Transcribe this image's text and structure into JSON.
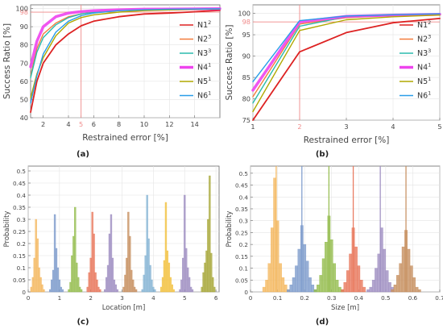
{
  "colors": {
    "N1": "#dd2222",
    "N2": "#f47c3c",
    "N3": "#2bbbad",
    "N4": "#ee44ee",
    "N5": "#b0a800",
    "N6": "#2a9ee8",
    "refline": "#f08a8a",
    "h_orange": "#f4b860",
    "h_blue": "#7e9ccc",
    "h_green": "#95bd4f",
    "h_red": "#e8785c",
    "h_purple": "#9f8fc2",
    "h_sky": "#86b4d4",
    "h_yellow": "#f2c242",
    "h_olive": "#a8a83a",
    "h_brown": "#c79060"
  },
  "chart_data": [
    {
      "id": "a",
      "type": "line",
      "panel_label": "(a)",
      "xlabel": "Restrained error [%]",
      "ylabel": "Success Ratio [%]",
      "xlim": [
        1,
        16
      ],
      "ylim": [
        40,
        102
      ],
      "xticks": [
        2,
        4,
        5,
        6,
        8,
        10,
        12,
        14
      ],
      "xtick_labels": [
        "2",
        "4",
        "5",
        "6",
        "8",
        "10",
        "12",
        "14"
      ],
      "highlight_xtick": 5,
      "yticks": [
        40,
        50,
        60,
        70,
        80,
        90,
        98,
        100
      ],
      "ytick_labels": [
        "40",
        "50",
        "60",
        "70",
        "80",
        "90",
        "98",
        "100"
      ],
      "highlight_ytick": 98,
      "ref_x": 5,
      "ref_y": 98,
      "legend_placement": "right",
      "x": [
        1,
        1.5,
        2,
        3,
        4,
        5,
        6,
        8,
        10,
        12,
        14,
        16
      ],
      "series": [
        {
          "name": "N1",
          "sup": "2",
          "color_key": "N1",
          "lw": 1.8,
          "values": [
            43,
            60,
            70,
            80,
            86,
            90.5,
            93,
            95.5,
            97,
            97.5,
            98.2,
            99
          ]
        },
        {
          "name": "N2",
          "sup": "3",
          "color_key": "N2",
          "lw": 1.4,
          "values": [
            63,
            78,
            86,
            92,
            95.5,
            97,
            98,
            99,
            99.4,
            99.6,
            99.7,
            99.8
          ]
        },
        {
          "name": "N3",
          "sup": "3",
          "color_key": "N3",
          "lw": 1.4,
          "values": [
            62,
            76,
            84,
            91,
            95,
            97,
            98,
            99,
            99.4,
            99.6,
            99.7,
            99.8
          ]
        },
        {
          "name": "N4",
          "sup": "1",
          "color_key": "N4",
          "lw": 3.5,
          "values": [
            68,
            82,
            90,
            95.5,
            97.5,
            98.3,
            98.8,
            99.3,
            99.6,
            99.7,
            99.8,
            99.9
          ]
        },
        {
          "name": "N5",
          "sup": "1",
          "color_key": "N5",
          "lw": 1.4,
          "values": [
            51,
            64,
            73,
            85,
            92,
            95,
            96.5,
            98,
            98.8,
            99.2,
            99.5,
            99.7
          ]
        },
        {
          "name": "N6",
          "sup": "1",
          "color_key": "N6",
          "lw": 1.4,
          "values": [
            48,
            63,
            75,
            87,
            93,
            96,
            97.5,
            98.8,
            99.3,
            99.6,
            99.7,
            99.8
          ]
        }
      ]
    },
    {
      "id": "b",
      "type": "line",
      "panel_label": "(b)",
      "xlabel": "Restrained error [%]",
      "ylabel": "Success Ratio [%]",
      "xlim": [
        1,
        5
      ],
      "ylim": [
        75,
        102
      ],
      "xticks": [
        1,
        2,
        3,
        4,
        5
      ],
      "xtick_labels": [
        "1",
        "2",
        "3",
        "4",
        "5"
      ],
      "highlight_xtick": 2,
      "yticks": [
        75,
        80,
        85,
        90,
        95,
        98,
        100
      ],
      "ytick_labels": [
        "75",
        "80",
        "85",
        "90",
        "95",
        "98",
        "100"
      ],
      "highlight_ytick": 98,
      "ref_x": 2,
      "ref_y": 98,
      "legend_placement": "right",
      "x": [
        1,
        2,
        3,
        4,
        5
      ],
      "series": [
        {
          "name": "N1",
          "sup": "2",
          "color_key": "N1",
          "lw": 1.8,
          "values": [
            75,
            91,
            95.5,
            97.8,
            98.8
          ]
        },
        {
          "name": "N2",
          "sup": "3",
          "color_key": "N2",
          "lw": 1.4,
          "values": [
            80.5,
            97.5,
            99,
            99.5,
            99.8
          ]
        },
        {
          "name": "N3",
          "sup": "3",
          "color_key": "N3",
          "lw": 1.4,
          "values": [
            79,
            97,
            99.2,
            99.6,
            99.8
          ]
        },
        {
          "name": "N4",
          "sup": "1",
          "color_key": "N4",
          "lw": 3.5,
          "values": [
            82,
            98,
            99.3,
            99.6,
            99.8
          ]
        },
        {
          "name": "N5",
          "sup": "1",
          "color_key": "N5",
          "lw": 1.4,
          "values": [
            77,
            96,
            98.5,
            99.2,
            99.6
          ]
        },
        {
          "name": "N6",
          "sup": "1",
          "color_key": "N6",
          "lw": 1.4,
          "values": [
            84,
            98.3,
            99.4,
            99.7,
            99.9
          ]
        }
      ]
    },
    {
      "id": "c",
      "type": "bar",
      "panel_label": "(c)",
      "xlabel": "Location [m]",
      "ylabel": "Probability",
      "xlim": [
        0,
        6.1
      ],
      "ylim": [
        0,
        0.52
      ],
      "xticks": [
        0,
        1,
        2,
        3,
        4,
        5,
        6
      ],
      "xtick_labels": [
        "0",
        "1",
        "2",
        "3",
        "4",
        "5",
        "6"
      ],
      "yticks": [
        0,
        0.05,
        0.1,
        0.15,
        0.2,
        0.25,
        0.3,
        0.35,
        0.4,
        0.45,
        0.5
      ],
      "ytick_labels": [
        "0",
        "0.05",
        "0.1",
        "0.15",
        "0.2",
        "0.25",
        "0.3",
        "0.35",
        "0.4",
        "0.45",
        "0.5"
      ],
      "bin_width": 0.05,
      "histograms": [
        {
          "center": 0.3,
          "color_key": "h_orange",
          "values": [
            0.02,
            0.06,
            0.14,
            0.3,
            0.22,
            0.1,
            0.06,
            0.03,
            0.01
          ]
        },
        {
          "center": 0.9,
          "color_key": "h_blue",
          "values": [
            0.01,
            0.05,
            0.09,
            0.32,
            0.18,
            0.1,
            0.05,
            0.02,
            0.01
          ]
        },
        {
          "center": 1.5,
          "color_key": "h_green",
          "values": [
            0.01,
            0.04,
            0.15,
            0.23,
            0.35,
            0.12,
            0.06,
            0.02,
            0.01
          ]
        },
        {
          "center": 2.1,
          "color_key": "h_red",
          "values": [
            0.02,
            0.08,
            0.14,
            0.33,
            0.24,
            0.08,
            0.05,
            0.02,
            0.01
          ]
        },
        {
          "center": 2.65,
          "color_key": "h_purple",
          "values": [
            0.01,
            0.06,
            0.11,
            0.24,
            0.32,
            0.14,
            0.05,
            0.03,
            0.01
          ]
        },
        {
          "center": 3.25,
          "color_key": "h_brown",
          "values": [
            0.02,
            0.07,
            0.14,
            0.33,
            0.23,
            0.09,
            0.05,
            0.02,
            0.01
          ]
        },
        {
          "center": 3.85,
          "color_key": "h_sky",
          "values": [
            0.01,
            0.07,
            0.15,
            0.4,
            0.22,
            0.11,
            0.05,
            0.02,
            0.01
          ]
        },
        {
          "center": 4.45,
          "color_key": "h_yellow",
          "values": [
            0.02,
            0.06,
            0.13,
            0.37,
            0.17,
            0.12,
            0.06,
            0.03,
            0.01
          ]
        },
        {
          "center": 5.05,
          "color_key": "h_purple",
          "values": [
            0.01,
            0.05,
            0.14,
            0.4,
            0.18,
            0.1,
            0.06,
            0.02,
            0.01
          ]
        },
        {
          "center": 5.75,
          "color_key": "h_olive",
          "values": [
            0.02,
            0.08,
            0.12,
            0.17,
            0.3,
            0.48,
            0.16,
            0.06,
            0.02
          ]
        }
      ]
    },
    {
      "id": "d",
      "type": "bar",
      "panel_label": "(d)",
      "xlabel": "Size [m]",
      "ylabel": "Probability",
      "xlim": [
        0,
        0.7
      ],
      "ylim": [
        0,
        0.53
      ],
      "xticks": [
        0,
        0.1,
        0.2,
        0.3,
        0.4,
        0.5,
        0.6,
        0.7
      ],
      "xtick_labels": [
        "0",
        "0.1",
        "0.2",
        "0.3",
        "0.4",
        "0.5",
        "0.6",
        "0.7"
      ],
      "yticks": [
        0,
        0.05,
        0.1,
        0.15,
        0.2,
        0.25,
        0.3,
        0.35,
        0.4,
        0.45,
        0.5
      ],
      "ytick_labels": [
        "0",
        "0.05",
        "0.1",
        "0.15",
        "0.2",
        "0.25",
        "0.3",
        "0.35",
        "0.4",
        "0.45",
        "0.5"
      ],
      "bin_width": 0.01,
      "peak_lines": [
        0.095,
        0.19,
        0.29,
        0.38,
        0.48,
        0.575
      ],
      "histograms": [
        {
          "center": 0.095,
          "color_key": "h_orange",
          "values": [
            0.02,
            0.05,
            0.12,
            0.27,
            0.48,
            0.3,
            0.12,
            0.06,
            0.03,
            0.01
          ]
        },
        {
          "center": 0.19,
          "color_key": "h_blue",
          "values": [
            0.01,
            0.03,
            0.06,
            0.11,
            0.18,
            0.28,
            0.2,
            0.13,
            0.06,
            0.03,
            0.01
          ]
        },
        {
          "center": 0.29,
          "color_key": "h_green",
          "values": [
            0.01,
            0.03,
            0.07,
            0.14,
            0.21,
            0.32,
            0.22,
            0.12,
            0.05,
            0.02,
            0.01
          ]
        },
        {
          "center": 0.38,
          "color_key": "h_red",
          "values": [
            0.01,
            0.04,
            0.09,
            0.16,
            0.27,
            0.19,
            0.11,
            0.05,
            0.02
          ]
        },
        {
          "center": 0.48,
          "color_key": "h_purple",
          "values": [
            0.01,
            0.02,
            0.05,
            0.1,
            0.16,
            0.27,
            0.18,
            0.09,
            0.04,
            0.02
          ]
        },
        {
          "center": 0.575,
          "color_key": "h_brown",
          "values": [
            0.01,
            0.03,
            0.07,
            0.12,
            0.19,
            0.26,
            0.18,
            0.11,
            0.06,
            0.02,
            0.01
          ]
        }
      ]
    }
  ]
}
